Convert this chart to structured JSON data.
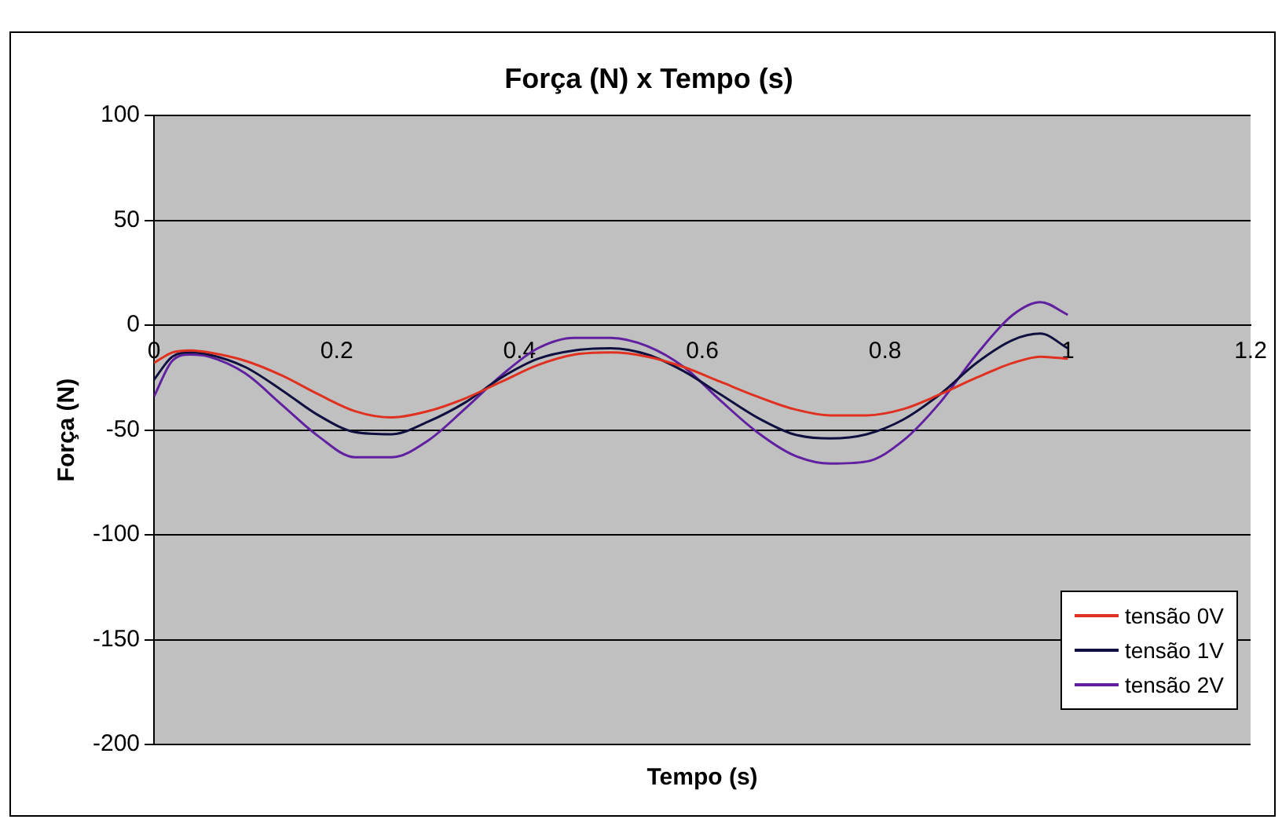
{
  "chart_data": {
    "type": "line",
    "title": "Força (N) x Tempo (s)",
    "xlabel": "Tempo (s)",
    "ylabel": "Força (N)",
    "xlim": [
      0,
      1.2
    ],
    "xticks": [
      0,
      0.2,
      0.4,
      0.6,
      0.8,
      1,
      1.2
    ],
    "ylim": [
      -200,
      100
    ],
    "yticks": [
      -200,
      -150,
      -100,
      -50,
      0,
      50,
      100
    ],
    "grid": "y",
    "legend": "bottom right",
    "marker": "none",
    "line_style": "solid",
    "x": [
      0,
      0.02,
      0.04,
      0.06,
      0.1,
      0.14,
      0.18,
      0.22,
      0.26,
      0.3,
      0.34,
      0.38,
      0.42,
      0.46,
      0.5,
      0.54,
      0.58,
      0.62,
      0.66,
      0.7,
      0.74,
      0.78,
      0.82,
      0.86,
      0.9,
      0.94,
      0.97,
      1.0
    ],
    "series": [
      {
        "name": "tensão 0V",
        "color": "#e03020",
        "values": [
          -18,
          -13,
          -12,
          -13,
          -17,
          -24,
          -33,
          -41,
          -44,
          -41,
          -35,
          -27,
          -19,
          -14,
          -13,
          -15,
          -20,
          -27,
          -34,
          -40,
          -43,
          -43,
          -40,
          -33,
          -25,
          -18,
          -15,
          -16
        ]
      },
      {
        "name": "tensão 1V",
        "color": "#101040",
        "values": [
          -26,
          -15,
          -13,
          -14,
          -20,
          -31,
          -43,
          -51,
          -52,
          -46,
          -37,
          -25,
          -16,
          -12,
          -11,
          -14,
          -22,
          -33,
          -44,
          -52,
          -54,
          -52,
          -45,
          -33,
          -18,
          -7,
          -4,
          -11
        ]
      },
      {
        "name": "tensão 2V",
        "color": "#6020a0",
        "values": [
          -34,
          -17,
          -14,
          -15,
          -23,
          -38,
          -53,
          -63,
          -63,
          -55,
          -40,
          -24,
          -11,
          -6,
          -6,
          -10,
          -20,
          -36,
          -51,
          -62,
          -66,
          -65,
          -55,
          -37,
          -14,
          5,
          11,
          5
        ]
      }
    ]
  }
}
